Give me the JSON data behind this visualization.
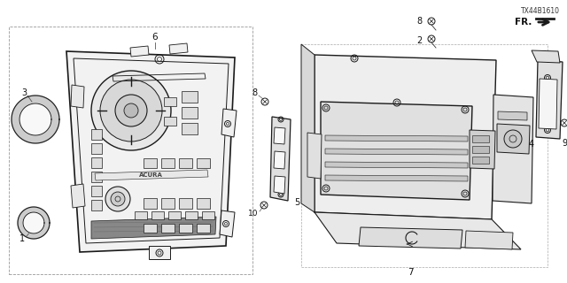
{
  "bg_color": "#ffffff",
  "line_color": "#1a1a1a",
  "fig_width": 6.4,
  "fig_height": 3.2,
  "dpi": 100,
  "diagram_code": "TX44B1610"
}
